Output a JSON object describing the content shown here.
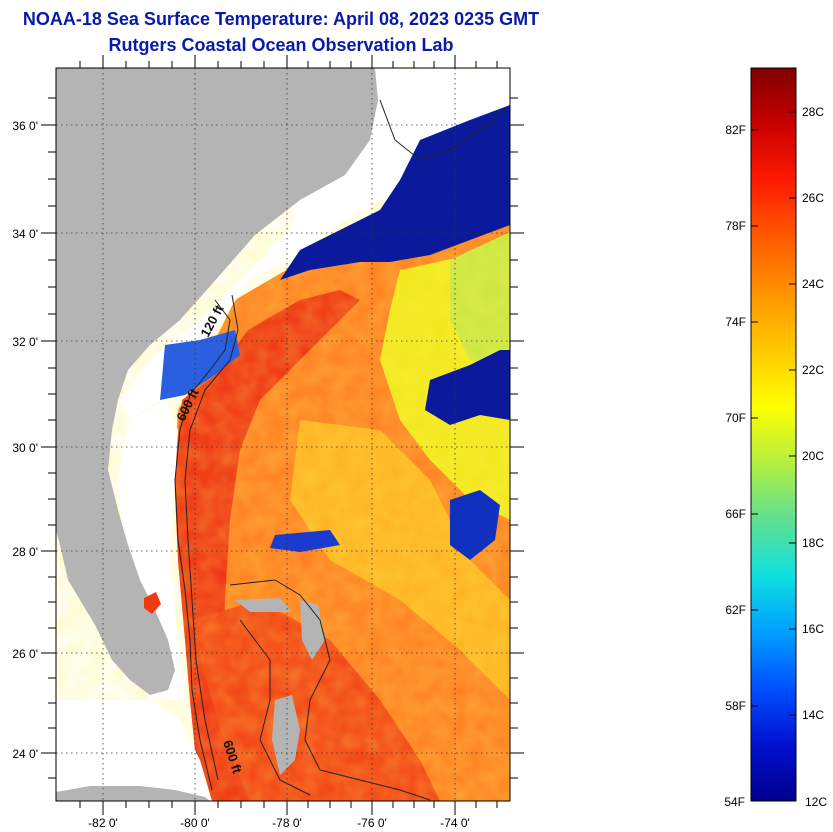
{
  "title": {
    "line1": "NOAA-18 Sea Surface Temperature:  April 08, 2023 0235 GMT",
    "line2": "Rutgers Coastal Ocean Observation Lab"
  },
  "map": {
    "lat_labels": [
      "36 0'",
      "34 0'",
      "32 0'",
      "30 0'",
      "28 0'",
      "26 0'",
      "24 0'"
    ],
    "lon_labels": [
      "-82 0'",
      "-80 0'",
      "-78 0'",
      "-76 0'",
      "-74 0'"
    ],
    "depth_labels": [
      "120 ft",
      "600 ft",
      "600 ft"
    ],
    "colors": {
      "land": "#b4b4b4",
      "cloud": "#ffffff",
      "warm": "#ee2a10",
      "mid": "#ff8c1e",
      "cool": "#f2e81a",
      "cold": "#0a1a9a"
    }
  },
  "colorbar": {
    "fahrenheit_labels": [
      "82F",
      "78F",
      "74F",
      "70F",
      "66F",
      "62F",
      "58F",
      "54F"
    ],
    "celsius_labels": [
      "28C",
      "26C",
      "24C",
      "22C",
      "20C",
      "18C",
      "16C",
      "14C",
      "12C"
    ],
    "gradient_colors": [
      "#800000",
      "#c80000",
      "#ff1a00",
      "#ff5a00",
      "#ff9400",
      "#ffc800",
      "#ffff00",
      "#b4f040",
      "#60e090",
      "#10e0e0",
      "#00a0ff",
      "#0050ff",
      "#0010d0",
      "#00008c"
    ]
  }
}
